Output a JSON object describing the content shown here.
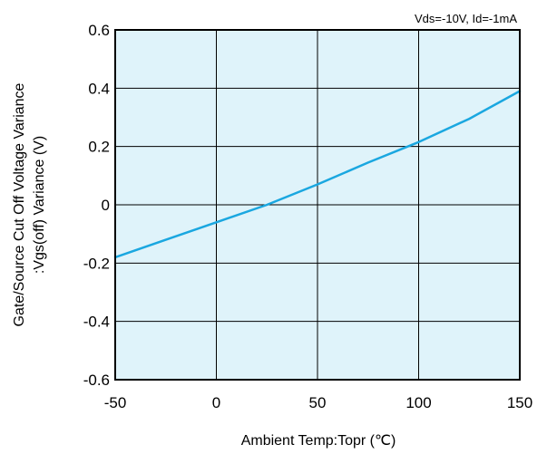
{
  "chart_data": {
    "type": "line",
    "title": "",
    "conditions": "Vds=-10V, Id=-1mA",
    "xlabel": "Ambient Temp:Topr (℃)",
    "ylabel_line1": "Gate/Source Cut Off Voltage Variance",
    "ylabel_line2": ":Vgs(off) Variance  (V)",
    "xlim": [
      -50,
      150
    ],
    "ylim": [
      -0.6,
      0.6
    ],
    "xticks": [
      -50,
      0,
      50,
      100,
      150
    ],
    "xtick_labels": [
      "-50",
      "0",
      "50",
      "100",
      "150"
    ],
    "yticks": [
      -0.6,
      -0.4,
      -0.2,
      0,
      0.2,
      0.4,
      0.6
    ],
    "ytick_labels": [
      "-0.6",
      "-0.4",
      "-0.2",
      "0",
      "0.2",
      "0.4",
      "0.6"
    ],
    "grid": true,
    "legend": "none",
    "series": [
      {
        "x": [
          -50,
          -25,
          0,
          25,
          50,
          75,
          100,
          125,
          150
        ],
        "y": [
          -0.18,
          -0.12,
          -0.06,
          0.0,
          0.07,
          0.145,
          0.215,
          0.295,
          0.39
        ]
      }
    ]
  },
  "colors": {
    "plot_background": "#dff3fa",
    "line": "#1aa7e0",
    "grid": "#000000",
    "frame": "#000000"
  }
}
